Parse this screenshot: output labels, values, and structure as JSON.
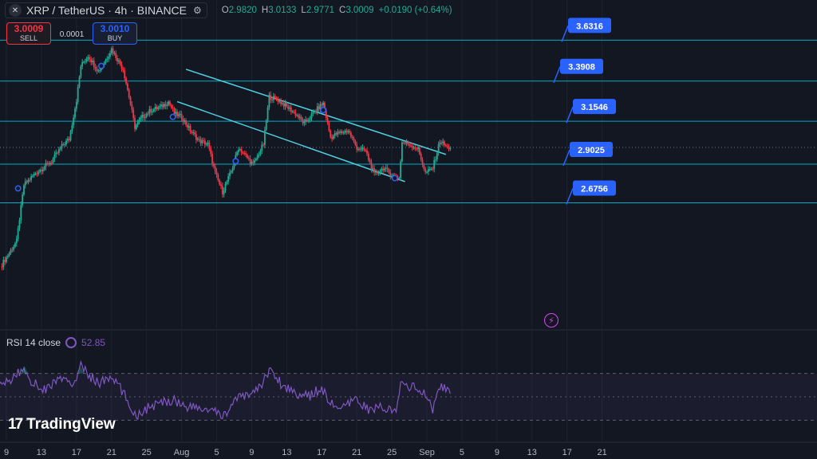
{
  "header": {
    "symbol": "XRP / TetherUS · 4h · BINANCE",
    "icon": "xrp-logo-icon",
    "ohlc": [
      {
        "k": "O",
        "v": "2.9820"
      },
      {
        "k": "H",
        "v": "3.0133"
      },
      {
        "k": "L",
        "v": "2.9771"
      },
      {
        "k": "C",
        "v": "3.0009"
      },
      {
        "k": "",
        "v": "+0.0190 (+0.64%)"
      }
    ]
  },
  "trade": {
    "sell_price": "3.0009",
    "sell_label": "SELL",
    "spread": "0.0001",
    "buy_price": "3.0010",
    "buy_label": "BUY"
  },
  "rsi": {
    "label": "RSI 14 close",
    "value": "52.85",
    "icon": "rsi-settings-icon"
  },
  "branding": {
    "logo_mark": "17",
    "name": "TradingView"
  },
  "colors": {
    "background": "#131722",
    "bull": "#22ab94",
    "bear": "#f23645",
    "level_line": "#00bcd4",
    "label": "#2962ff",
    "rsi": "#7e57c2"
  },
  "chart_data": {
    "type": "candlestick",
    "symbol": "XRPUSDT",
    "timeframe": "4h",
    "ylim": [
      2.2,
      3.68
    ],
    "x_ticks": [
      "9",
      "13",
      "17",
      "21",
      "25",
      "Aug",
      "5",
      "9",
      "13",
      "17",
      "21",
      "25",
      "Sep",
      "5",
      "9",
      "13",
      "17",
      "21"
    ],
    "levels": [
      3.6316,
      3.3908,
      3.1546,
      2.9025,
      2.6756
    ],
    "level_labels": [
      "3.6316",
      "3.3908",
      "3.1546",
      "2.9025",
      "2.6756"
    ],
    "current_price": 3.0009,
    "trendlines": [
      {
        "name": "upper channel",
        "from": {
          "x": "Jul 29 12:00",
          "y": 3.46
        },
        "to": {
          "x": "Aug 28 04:00",
          "y": 2.96
        }
      },
      {
        "name": "lower channel",
        "from": {
          "x": "Jul 28 12:00",
          "y": 3.27
        },
        "to": {
          "x": "Aug 23 12:00",
          "y": 2.8
        }
      }
    ],
    "price_path": [
      {
        "x": "Jul 08 08:00",
        "y": 2.3
      },
      {
        "x": "Jul 10 04:00",
        "y": 2.45
      },
      {
        "x": "Jul 11 00:00",
        "y": 2.78
      },
      {
        "x": "Jul 12 08:00",
        "y": 2.85
      },
      {
        "x": "Jul 14 04:00",
        "y": 2.92
      },
      {
        "x": "Jul 15 12:00",
        "y": 3.02
      },
      {
        "x": "Jul 16 04:00",
        "y": 3.05
      },
      {
        "x": "Jul 17 00:00",
        "y": 3.28
      },
      {
        "x": "Jul 17 12:00",
        "y": 3.48
      },
      {
        "x": "Jul 18 08:00",
        "y": 3.54
      },
      {
        "x": "Jul 19 12:00",
        "y": 3.45
      },
      {
        "x": "Jul 20 04:00",
        "y": 3.5
      },
      {
        "x": "Jul 21 00:00",
        "y": 3.58
      },
      {
        "x": "Jul 22 08:00",
        "y": 3.46
      },
      {
        "x": "Jul 23 00:00",
        "y": 3.3
      },
      {
        "x": "Jul 23 16:00",
        "y": 3.12
      },
      {
        "x": "Jul 24 12:00",
        "y": 3.18
      },
      {
        "x": "Jul 25 12:00",
        "y": 3.22
      },
      {
        "x": "Jul 26 16:00",
        "y": 3.24
      },
      {
        "x": "Jul 27 12:00",
        "y": 3.27
      },
      {
        "x": "Jul 28 04:00",
        "y": 3.2
      },
      {
        "x": "Jul 29 00:00",
        "y": 3.18
      },
      {
        "x": "Jul 30 00:00",
        "y": 3.1
      },
      {
        "x": "Jul 31 00:00",
        "y": 3.04
      },
      {
        "x": "Aug 01 00:00",
        "y": 3.02
      },
      {
        "x": "Aug 01 20:00",
        "y": 2.85
      },
      {
        "x": "Aug 02 16:00",
        "y": 2.74
      },
      {
        "x": "Aug 03 16:00",
        "y": 2.86
      },
      {
        "x": "Aug 04 12:00",
        "y": 3.0
      },
      {
        "x": "Aug 05 08:00",
        "y": 2.95
      },
      {
        "x": "Aug 06 04:00",
        "y": 2.9
      },
      {
        "x": "Aug 07 08:00",
        "y": 3.02
      },
      {
        "x": "Aug 08 00:00",
        "y": 3.3
      },
      {
        "x": "Aug 09 00:00",
        "y": 3.28
      },
      {
        "x": "Aug 10 00:00",
        "y": 3.24
      },
      {
        "x": "Aug 11 00:00",
        "y": 3.2
      },
      {
        "x": "Aug 12 00:00",
        "y": 3.14
      },
      {
        "x": "Aug 12 16:00",
        "y": 3.18
      },
      {
        "x": "Aug 13 08:00",
        "y": 3.22
      },
      {
        "x": "Aug 14 04:00",
        "y": 3.26
      },
      {
        "x": "Aug 15 00:00",
        "y": 3.06
      },
      {
        "x": "Aug 15 16:00",
        "y": 3.08
      },
      {
        "x": "Aug 17 00:00",
        "y": 3.1
      },
      {
        "x": "Aug 18 00:00",
        "y": 3.0
      },
      {
        "x": "Aug 19 00:00",
        "y": 2.98
      },
      {
        "x": "Aug 20 00:00",
        "y": 2.84
      },
      {
        "x": "Aug 21 00:00",
        "y": 2.88
      },
      {
        "x": "Aug 22 00:00",
        "y": 2.84
      },
      {
        "x": "Aug 22 20:00",
        "y": 2.82
      },
      {
        "x": "Aug 23 04:00",
        "y": 3.03
      },
      {
        "x": "Aug 24 00:00",
        "y": 3.02
      },
      {
        "x": "Aug 25 00:00",
        "y": 2.99
      },
      {
        "x": "Aug 25 20:00",
        "y": 2.85
      },
      {
        "x": "Aug 26 16:00",
        "y": 2.88
      },
      {
        "x": "Aug 27 12:00",
        "y": 3.04
      },
      {
        "x": "Aug 28 08:00",
        "y": 3.0
      },
      {
        "x": "Aug 28 16:00",
        "y": 3.0009
      }
    ],
    "markers": [
      {
        "x": "Jul 10 08:00",
        "y": 2.76
      },
      {
        "x": "Jul 19 20:00",
        "y": 3.48
      },
      {
        "x": "Jul 28 00:00",
        "y": 3.18
      },
      {
        "x": "Aug 04 04:00",
        "y": 2.92
      },
      {
        "x": "Aug 14 04:00",
        "y": 3.22
      },
      {
        "x": "Aug 22 08:00",
        "y": 2.82
      }
    ],
    "rsi_ylim": [
      20,
      80
    ],
    "rsi_levels": [
      70,
      50,
      30
    ],
    "rsi_path": [
      {
        "x": "Jul 08 00:00",
        "y": 58
      },
      {
        "x": "Jul 09 00:00",
        "y": 62
      },
      {
        "x": "Jul 10 00:00",
        "y": 68
      },
      {
        "x": "Jul 11 00:00",
        "y": 74
      },
      {
        "x": "Jul 12 00:00",
        "y": 62
      },
      {
        "x": "Jul 13 12:00",
        "y": 56
      },
      {
        "x": "Jul 15 00:00",
        "y": 66
      },
      {
        "x": "Jul 16 12:00",
        "y": 60
      },
      {
        "x": "Jul 17 12:00",
        "y": 76
      },
      {
        "x": "Jul 18 12:00",
        "y": 68
      },
      {
        "x": "Jul 19 12:00",
        "y": 62
      },
      {
        "x": "Jul 21 00:00",
        "y": 66
      },
      {
        "x": "Jul 22 00:00",
        "y": 58
      },
      {
        "x": "Jul 23 00:00",
        "y": 44
      },
      {
        "x": "Jul 23 20:00",
        "y": 34
      },
      {
        "x": "Jul 25 00:00",
        "y": 40
      },
      {
        "x": "Jul 26 12:00",
        "y": 44
      },
      {
        "x": "Jul 28 00:00",
        "y": 48
      },
      {
        "x": "Jul 29 12:00",
        "y": 42
      },
      {
        "x": "Jul 31 00:00",
        "y": 40
      },
      {
        "x": "Aug 01 12:00",
        "y": 38
      },
      {
        "x": "Aug 02 16:00",
        "y": 33
      },
      {
        "x": "Aug 04 00:00",
        "y": 46
      },
      {
        "x": "Aug 05 12:00",
        "y": 52
      },
      {
        "x": "Aug 07 00:00",
        "y": 58
      },
      {
        "x": "Aug 08 00:00",
        "y": 74
      },
      {
        "x": "Aug 09 12:00",
        "y": 60
      },
      {
        "x": "Aug 11 00:00",
        "y": 54
      },
      {
        "x": "Aug 12 12:00",
        "y": 50
      },
      {
        "x": "Aug 14 00:00",
        "y": 58
      },
      {
        "x": "Aug 15 00:00",
        "y": 44
      },
      {
        "x": "Aug 16 12:00",
        "y": 40
      },
      {
        "x": "Aug 18 00:00",
        "y": 48
      },
      {
        "x": "Aug 19 12:00",
        "y": 38
      },
      {
        "x": "Aug 21 00:00",
        "y": 42
      },
      {
        "x": "Aug 22 12:00",
        "y": 35
      },
      {
        "x": "Aug 23 00:00",
        "y": 62
      },
      {
        "x": "Aug 24 12:00",
        "y": 58
      },
      {
        "x": "Aug 25 12:00",
        "y": 54
      },
      {
        "x": "Aug 26 16:00",
        "y": 40
      },
      {
        "x": "Aug 27 12:00",
        "y": 60
      },
      {
        "x": "Aug 28 16:00",
        "y": 52.85
      }
    ]
  }
}
